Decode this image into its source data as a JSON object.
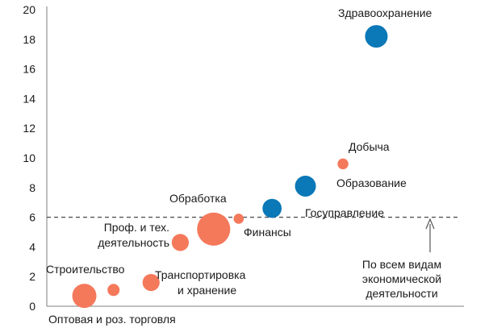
{
  "chart_data": {
    "type": "scatter",
    "variant": "bubble",
    "title": "",
    "xlabel": "",
    "ylabel": "",
    "ylim": [
      0,
      20
    ],
    "yticks": [
      0,
      2,
      4,
      6,
      8,
      10,
      12,
      14,
      16,
      18,
      20
    ],
    "xlim": [
      0,
      10
    ],
    "grid": false,
    "colors": {
      "orange": "#f4795b",
      "blue": "#0b78b7"
    },
    "reference_line": {
      "y": 6,
      "label": "По всем видам экономической деятельности",
      "label_lines": [
        "По всем видам",
        "экономической",
        "деятельности"
      ]
    },
    "points": [
      {
        "name": "Оптовая и роз. торговля",
        "x": 0.9,
        "y": 0.7,
        "size": 4.0,
        "color": "orange"
      },
      {
        "name": "Строительство",
        "x": 1.6,
        "y": 1.1,
        "size": 1.0,
        "color": "orange"
      },
      {
        "name": "Транспортировка и хранение",
        "label_lines": [
          "Транспортировка",
          "и хранение"
        ],
        "x": 2.5,
        "y": 1.6,
        "size": 2.0,
        "color": "orange"
      },
      {
        "name": "Проф. и тех. деятельность",
        "label_lines": [
          "Проф. и тех.",
          "деятельность"
        ],
        "x": 3.2,
        "y": 4.3,
        "size": 2.0,
        "color": "orange"
      },
      {
        "name": "Обработка",
        "x": 4.0,
        "y": 5.2,
        "size": 7.5,
        "color": "orange"
      },
      {
        "name": "Финансы",
        "x": 4.6,
        "y": 5.9,
        "size": 0.7,
        "color": "orange"
      },
      {
        "name": "Госуправление",
        "x": 5.4,
        "y": 6.6,
        "size": 2.5,
        "color": "blue"
      },
      {
        "name": "Образование",
        "x": 6.2,
        "y": 8.1,
        "size": 3.0,
        "color": "blue"
      },
      {
        "name": "Добыча",
        "x": 7.1,
        "y": 9.6,
        "size": 0.8,
        "color": "orange"
      },
      {
        "name": "Здравоохранение",
        "x": 7.9,
        "y": 18.2,
        "size": 3.5,
        "color": "blue"
      }
    ]
  }
}
